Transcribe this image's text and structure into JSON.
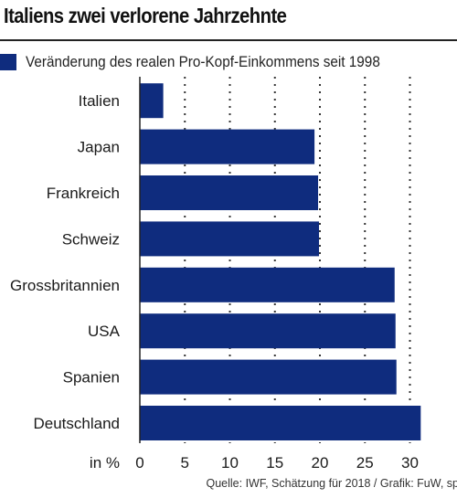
{
  "title": "Italiens zwei verlorene Jahrzehnte",
  "legend": {
    "label": "Veränderung des realen Pro-Kopf-Einkommens seit 1998",
    "color": "#0f2c7e"
  },
  "source": "Quelle: IWF, Schätzung für 2018 / Grafik: FuW, sp",
  "chart_data": {
    "type": "bar",
    "orientation": "horizontal",
    "categories": [
      "Italien",
      "Japan",
      "Frankreich",
      "Schweiz",
      "Grossbritannien",
      "USA",
      "Spanien",
      "Deutschland"
    ],
    "series": [
      {
        "name": "Veränderung des realen Pro-Kopf-Einkommens seit 1998",
        "values": [
          2.6,
          19.4,
          19.8,
          19.9,
          28.3,
          28.4,
          28.5,
          31.2
        ]
      }
    ],
    "xlabel": "in %",
    "ylabel": "",
    "xlim": [
      0,
      32
    ],
    "xticks": [
      0,
      5,
      10,
      15,
      20,
      25,
      30
    ],
    "grid": "vertical dotted",
    "bar_color": "#0f2c7e"
  }
}
